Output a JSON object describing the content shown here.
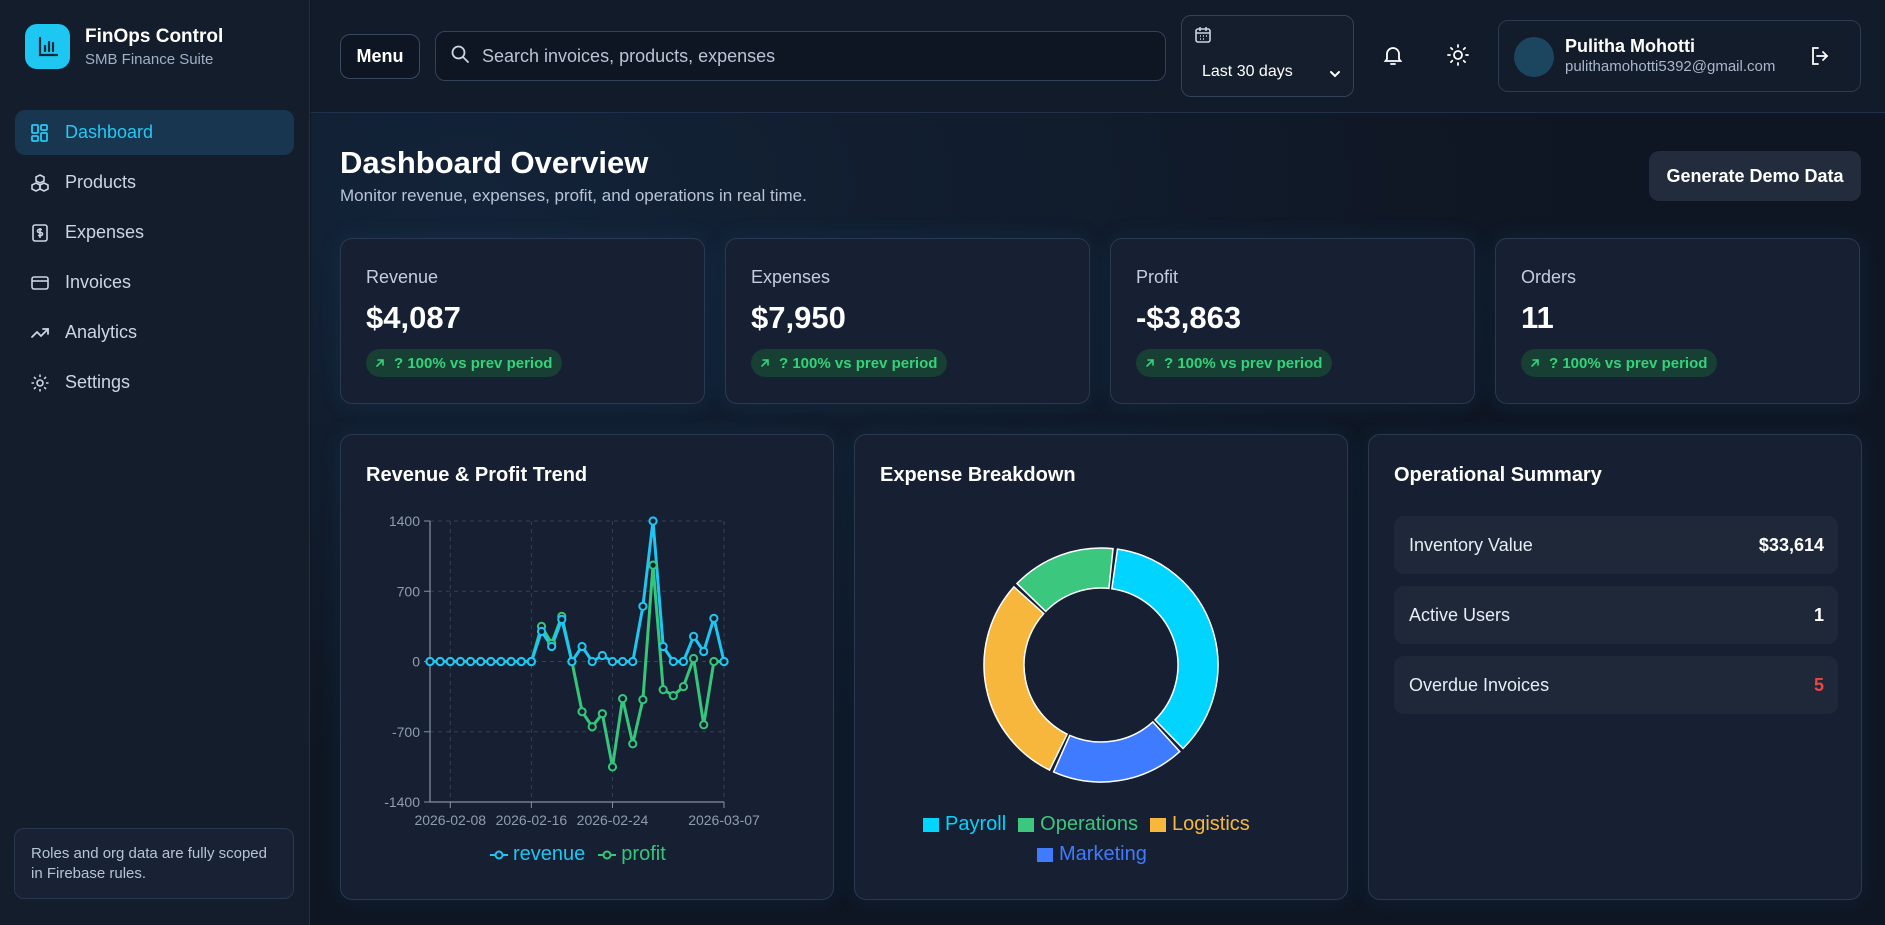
{
  "brand": {
    "title": "FinOps Control",
    "subtitle": "SMB Finance Suite"
  },
  "sidebar": {
    "items": [
      {
        "label": "Dashboard",
        "icon": "dashboard-icon",
        "active": true
      },
      {
        "label": "Products",
        "icon": "boxes-icon"
      },
      {
        "label": "Expenses",
        "icon": "receipt-dollar-icon"
      },
      {
        "label": "Invoices",
        "icon": "credit-card-icon"
      },
      {
        "label": "Analytics",
        "icon": "trend-up-icon"
      },
      {
        "label": "Settings",
        "icon": "gear-icon"
      }
    ],
    "note": "Roles and org data are fully scoped in Firebase rules."
  },
  "topbar": {
    "menu_label": "Menu",
    "search_placeholder": "Search invoices, products, expenses",
    "date_range": "Last 30 days",
    "user_name": "Pulitha Mohotti",
    "user_email": "pulithamohotti5392@gmail.com"
  },
  "page": {
    "title": "Dashboard Overview",
    "subtitle": "Monitor revenue, expenses, profit, and operations in real time.",
    "demo_button": "Generate Demo Data"
  },
  "kpis": [
    {
      "label": "Revenue",
      "value": "$4,087",
      "change": "? 100% vs prev period"
    },
    {
      "label": "Expenses",
      "value": "$7,950",
      "change": "? 100% vs prev period"
    },
    {
      "label": "Profit",
      "value": "-$3,863",
      "change": "? 100% vs prev period"
    },
    {
      "label": "Orders",
      "value": "11",
      "change": "? 100% vs prev period"
    }
  ],
  "panels": {
    "trend_title": "Revenue & Profit Trend",
    "expense_title": "Expense Breakdown",
    "ops_title": "Operational Summary"
  },
  "ops": [
    {
      "label": "Inventory Value",
      "value": "$33,614",
      "color": "#ffffff"
    },
    {
      "label": "Active Users",
      "value": "1",
      "color": "#ffffff"
    },
    {
      "label": "Overdue Invoices",
      "value": "5",
      "color": "#ef4444"
    }
  ],
  "colors": {
    "accent": "#1ec6f2",
    "revenue": "#1ec6f2",
    "profit": "#34c77b",
    "payroll": "#00d4ff",
    "operations": "#3cc77e",
    "logistics": "#f6b73c",
    "marketing": "#3f7bff",
    "danger": "#ef4444"
  },
  "chart_data": [
    {
      "type": "line",
      "title": "Revenue & Profit Trend",
      "x_ticks": [
        "2026-02-08",
        "2026-02-16",
        "2026-02-24",
        "2026-03-07"
      ],
      "y_ticks": [
        1400,
        700,
        0,
        -700,
        -1400
      ],
      "ylim": [
        -1400,
        1400
      ],
      "grid": true,
      "legend_position": "bottom",
      "series": [
        {
          "name": "revenue",
          "color": "#1ec6f2",
          "values": [
            0,
            0,
            0,
            0,
            0,
            0,
            0,
            0,
            0,
            0,
            0,
            300,
            150,
            420,
            0,
            150,
            0,
            60,
            0,
            0,
            0,
            550,
            1400,
            150,
            0,
            0,
            250,
            100,
            430,
            0
          ]
        },
        {
          "name": "profit",
          "color": "#34c77b",
          "values": [
            0,
            0,
            0,
            0,
            0,
            0,
            0,
            0,
            0,
            0,
            0,
            350,
            180,
            450,
            0,
            -500,
            -650,
            -520,
            -1050,
            -370,
            -820,
            -380,
            960,
            -280,
            -340,
            -250,
            30,
            -630,
            0,
            0
          ]
        }
      ]
    },
    {
      "type": "pie",
      "title": "Expense Breakdown",
      "donut": true,
      "legend_position": "bottom",
      "slices": [
        {
          "name": "Payroll",
          "value": 36,
          "color": "#00d4ff"
        },
        {
          "name": "Marketing",
          "value": 19,
          "color": "#3f7bff"
        },
        {
          "name": "Logistics",
          "value": 30,
          "color": "#f6b73c"
        },
        {
          "name": "Operations",
          "value": 15,
          "color": "#3cc77e"
        }
      ]
    }
  ]
}
